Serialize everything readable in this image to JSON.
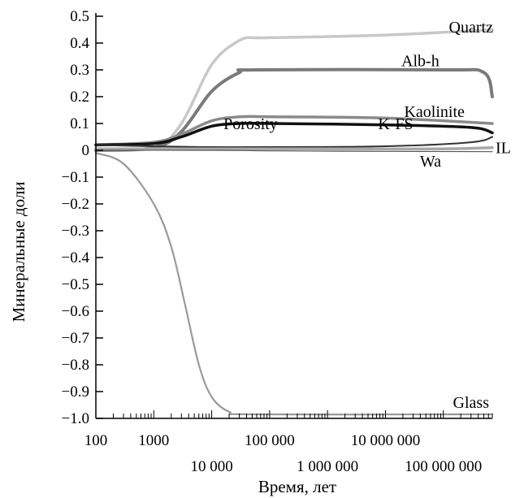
{
  "chart_data": {
    "type": "line",
    "xlabel": "Время, лет",
    "ylabel": "Минеральные доли",
    "x_scale": "log",
    "xlim": [
      100,
      700000000
    ],
    "ylim": [
      -1.0,
      0.5
    ],
    "x_tick_labels_row1": [
      {
        "value": 100,
        "label": "100"
      },
      {
        "value": 1000,
        "label": "1000"
      },
      {
        "value": 100000,
        "label": "100 000"
      },
      {
        "value": 10000000,
        "label": "10 000 000"
      }
    ],
    "x_tick_labels_row2": [
      {
        "value": 10000,
        "label": "10 000"
      },
      {
        "value": 1000000,
        "label": "1 000 000"
      },
      {
        "value": 100000000,
        "label": "100 000 000"
      }
    ],
    "y_ticks": [
      {
        "value": 0.5,
        "label": "0.5"
      },
      {
        "value": 0.4,
        "label": "0.4"
      },
      {
        "value": 0.3,
        "label": "0.3"
      },
      {
        "value": 0.2,
        "label": "0.2"
      },
      {
        "value": 0.1,
        "label": "0.1"
      },
      {
        "value": 0,
        "label": "0"
      },
      {
        "value": -0.1,
        "label": "−0.1"
      },
      {
        "value": -0.2,
        "label": "−0.2"
      },
      {
        "value": -0.3,
        "label": "−0.3"
      },
      {
        "value": -0.4,
        "label": "−0.4"
      },
      {
        "value": -0.5,
        "label": "−0.5"
      },
      {
        "value": -0.6,
        "label": "−0.6"
      },
      {
        "value": -0.7,
        "label": "−0.7"
      },
      {
        "value": -0.8,
        "label": "−0.8"
      },
      {
        "value": -0.9,
        "label": "−0.9"
      },
      {
        "value": -1.0,
        "label": "−1.0"
      }
    ],
    "grid": false,
    "series": [
      {
        "name": "Quartz",
        "color": "#c8c8c8",
        "width": 3.5,
        "points": [
          [
            100,
            0.0
          ],
          [
            1000,
            0.01
          ],
          [
            3000,
            0.1
          ],
          [
            10000,
            0.32
          ],
          [
            30000,
            0.41
          ],
          [
            60000,
            0.42
          ],
          [
            100000,
            0.42
          ],
          [
            10000000,
            0.43
          ],
          [
            700000000,
            0.45
          ]
        ]
      },
      {
        "name": "Alb-h",
        "color": "#7a7a7a",
        "width": 4,
        "points": [
          [
            100,
            0.0
          ],
          [
            1000,
            0.01
          ],
          [
            3000,
            0.07
          ],
          [
            10000,
            0.22
          ],
          [
            30000,
            0.29
          ],
          [
            60000,
            0.3
          ],
          [
            100000000,
            0.3
          ],
          [
            500000000,
            0.29
          ],
          [
            700000000,
            0.2
          ]
        ]
      },
      {
        "name": "Kaolinite",
        "color": "#8a8a8a",
        "width": 3.5,
        "points": [
          [
            100,
            0.02
          ],
          [
            1000,
            0.03
          ],
          [
            3000,
            0.06
          ],
          [
            10000,
            0.11
          ],
          [
            30000,
            0.125
          ],
          [
            100000,
            0.125
          ],
          [
            10000000,
            0.12
          ],
          [
            700000000,
            0.1
          ]
        ]
      },
      {
        "name": "Porosity",
        "color": "#111111",
        "width": 3.5,
        "points": [
          [
            100,
            0.02
          ],
          [
            1000,
            0.025
          ],
          [
            3000,
            0.05
          ],
          [
            10000,
            0.09
          ],
          [
            30000,
            0.1
          ],
          [
            100000,
            0.1
          ],
          [
            10000000,
            0.095
          ],
          [
            300000000,
            0.085
          ],
          [
            700000000,
            0.065
          ]
        ]
      },
      {
        "name": "K-FS",
        "color": "#333333",
        "width": 2,
        "points": [
          [
            100,
            0.02
          ],
          [
            1000,
            0.015
          ],
          [
            10000,
            0.012
          ],
          [
            100000,
            0.012
          ],
          [
            10000000,
            0.015
          ],
          [
            300000000,
            0.03
          ],
          [
            700000000,
            0.05
          ]
        ]
      },
      {
        "name": "IL",
        "color": "#a8a8a8",
        "width": 3.5,
        "points": [
          [
            100,
            0.005
          ],
          [
            10000,
            0.005
          ],
          [
            1000000,
            0.005
          ],
          [
            100000000,
            0.005
          ],
          [
            700000000,
            0.01
          ]
        ]
      },
      {
        "name": "Wa",
        "color": "#555555",
        "width": 1.2,
        "points": [
          [
            100,
            0.0
          ],
          [
            10000,
            0.0
          ],
          [
            100000,
            -0.002
          ],
          [
            10000000,
            -0.004
          ],
          [
            700000000,
            -0.005
          ]
        ]
      },
      {
        "name": "Glass",
        "color": "#9a9a9a",
        "width": 2.2,
        "points": [
          [
            100,
            -0.01
          ],
          [
            300,
            -0.05
          ],
          [
            1000,
            -0.2
          ],
          [
            2000,
            -0.36
          ],
          [
            3500,
            -0.58
          ],
          [
            6000,
            -0.8
          ],
          [
            10000,
            -0.92
          ],
          [
            20000,
            -0.975
          ],
          [
            50000,
            -0.985
          ],
          [
            100000000,
            -0.985
          ],
          [
            700000000,
            -0.985
          ]
        ]
      }
    ],
    "annotations": [
      {
        "text": "Quartz",
        "x": 300000000,
        "y": 0.46,
        "anchor": "middle"
      },
      {
        "text": "Alb-h",
        "x": 40000000,
        "y": 0.335,
        "anchor": "middle"
      },
      {
        "text": "Kaolinite",
        "x": 70000000,
        "y": 0.145,
        "anchor": "middle"
      },
      {
        "text": "Porosity",
        "x": 16000,
        "y": 0.1,
        "anchor": "start"
      },
      {
        "text": "K-FS",
        "x": 15000000,
        "y": 0.1,
        "anchor": "middle"
      },
      {
        "text": "IL",
        "x": 1000000000,
        "y": 0.01,
        "anchor": "start"
      },
      {
        "text": "Wa",
        "x": 60000000,
        "y": -0.04,
        "anchor": "middle"
      },
      {
        "text": "Glass",
        "x": 300000000,
        "y": -0.94,
        "anchor": "middle"
      }
    ]
  }
}
